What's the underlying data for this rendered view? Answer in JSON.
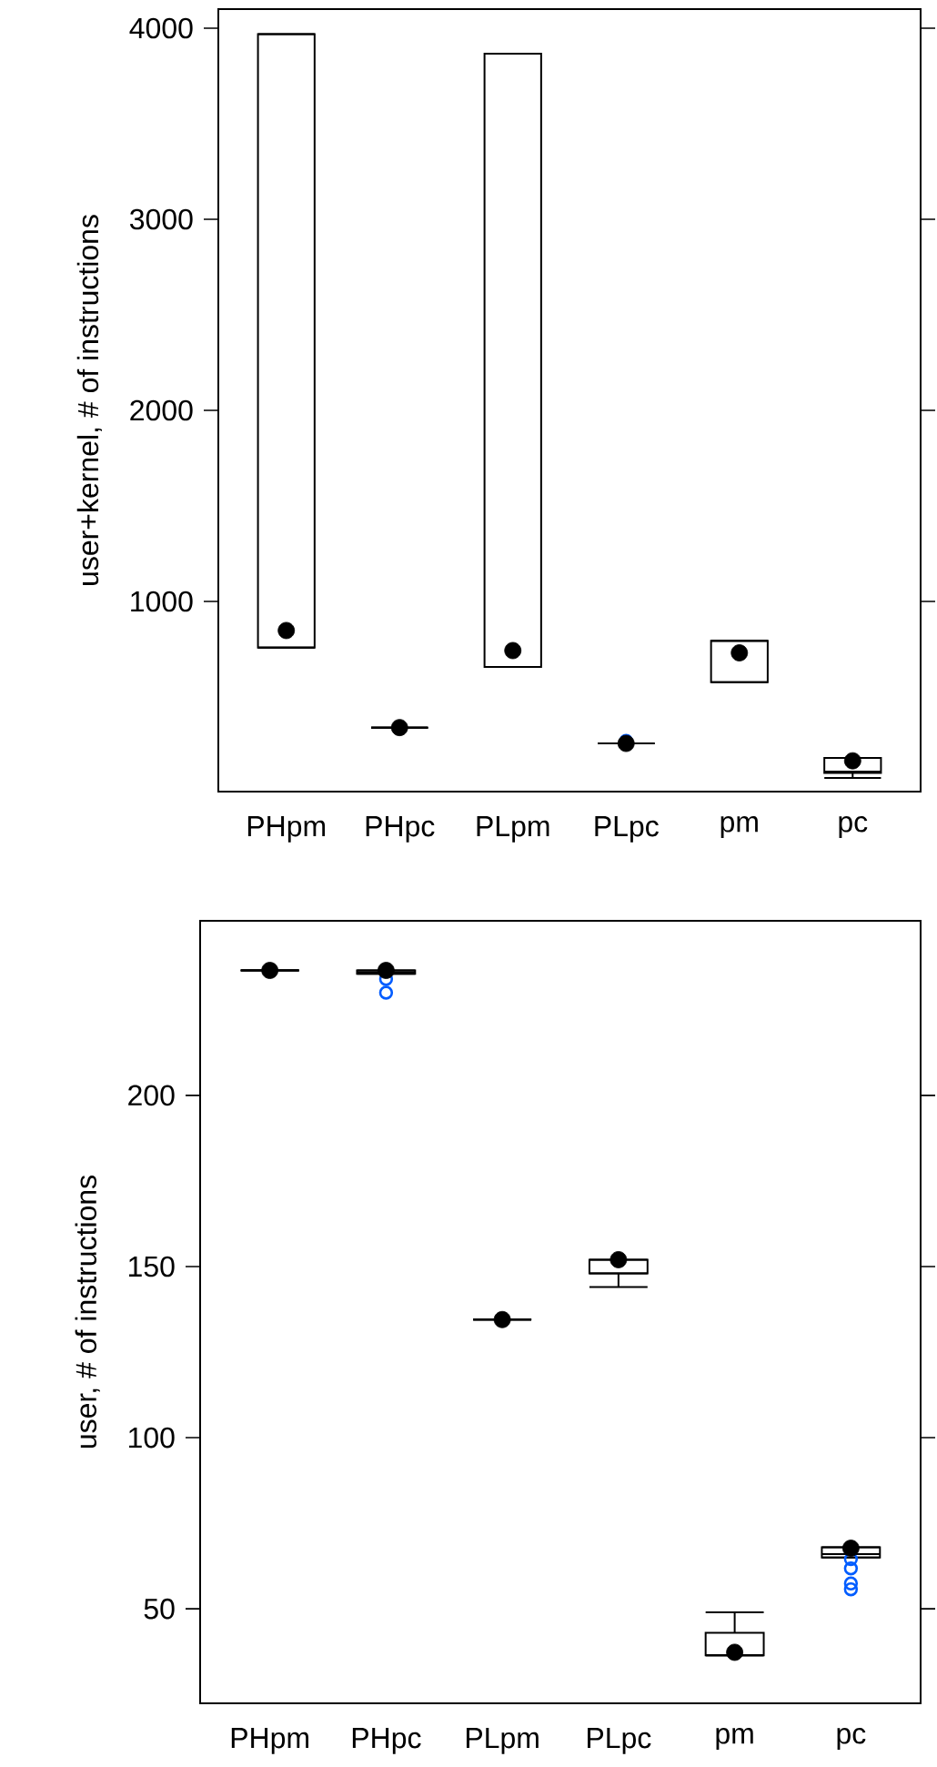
{
  "chart_data": [
    {
      "type": "box",
      "ylabel": "user+kernel, # of instructions",
      "categories": [
        "PHpm",
        "PHpc",
        "PLpm",
        "PLpc",
        "pm",
        "pc"
      ],
      "ylim": [
        5,
        4100
      ],
      "yticks": [
        1000,
        2000,
        3000,
        4000
      ],
      "grid": false,
      "boxes": [
        {
          "low": 759,
          "q1": 759,
          "median": 759,
          "q3": 3969,
          "high": 3969,
          "mean": 848
        },
        {
          "low": 340,
          "q1": 340,
          "median": 340,
          "q3": 340,
          "high": 340,
          "mean": 340
        },
        {
          "low": 657,
          "q1": 657,
          "median": 657,
          "q3": 3867,
          "high": 3867,
          "mean": 743
        },
        {
          "low": 257,
          "q1": 257,
          "median": 257,
          "q3": 257,
          "high": 257,
          "mean": 257,
          "outliers": [
            271
          ]
        },
        {
          "low": 578,
          "q1": 578,
          "median": 794,
          "q3": 794,
          "high": 794,
          "mean": 731
        },
        {
          "low": 76,
          "q1": 102,
          "median": 110,
          "q3": 181,
          "high": 181,
          "mean": 166
        }
      ]
    },
    {
      "type": "box",
      "ylabel": "user, # of instructions",
      "categories": [
        "PHpm",
        "PHpc",
        "PLpm",
        "PLpc",
        "pm",
        "pc"
      ],
      "ylim": [
        22.4,
        251
      ],
      "yticks": [
        50,
        100,
        150,
        200
      ],
      "grid": false,
      "boxes": [
        {
          "low": 236.5,
          "q1": 236.5,
          "median": 236.5,
          "q3": 236.5,
          "high": 236.5,
          "mean": 236.5
        },
        {
          "low": 235.5,
          "q1": 235.5,
          "median": 236,
          "q3": 236.5,
          "high": 236.5,
          "mean": 236.5,
          "outliers": [
            234,
            230
          ]
        },
        {
          "low": 134.5,
          "q1": 134.5,
          "median": 134.5,
          "q3": 134.5,
          "high": 134.5,
          "mean": 134.5
        },
        {
          "low": 144,
          "q1": 148,
          "median": 148,
          "q3": 152,
          "high": 152,
          "mean": 152
        },
        {
          "low": 36.4,
          "q1": 36.4,
          "median": 36.4,
          "q3": 43,
          "high": 49,
          "mean": 37.3
        },
        {
          "low": 65,
          "q1": 65,
          "median": 66,
          "q3": 68,
          "high": 68,
          "mean": 67.7,
          "outliers": [
            64.5,
            61.8,
            57.4,
            55.7
          ]
        }
      ]
    }
  ]
}
